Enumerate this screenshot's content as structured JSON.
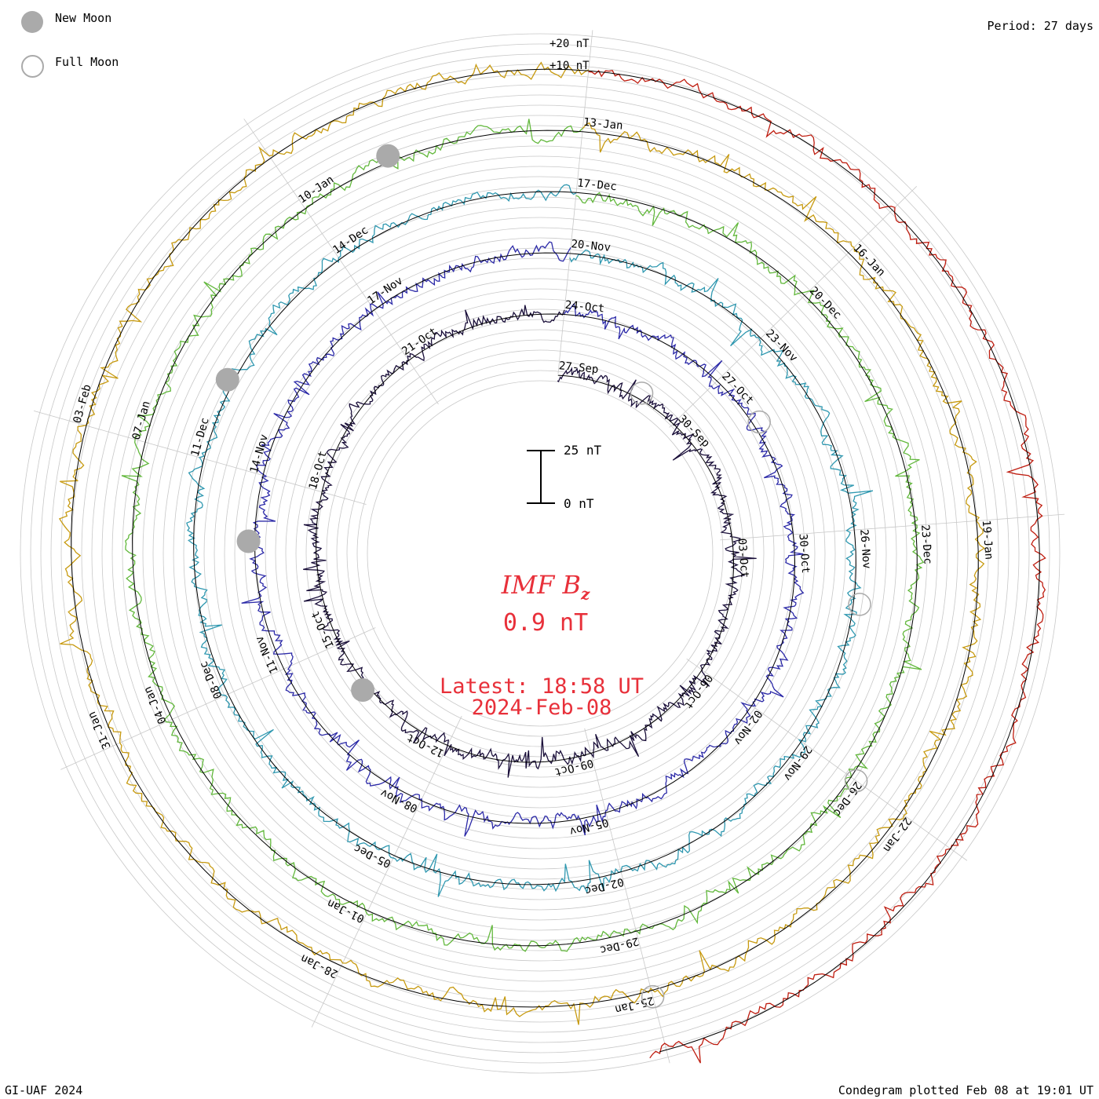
{
  "header": {
    "period_label": "Period: 27 days",
    "legend_new_moon": "New Moon",
    "legend_full_moon": "Full Moon"
  },
  "footer": {
    "credit": "GI-UAF 2024",
    "plotted": "Condegram plotted Feb 08 at 19:01 UT"
  },
  "center": {
    "title_main": "IMF B",
    "title_sub": "z",
    "current_value": "0.9 nT",
    "latest_time": "Latest: 18:58 UT",
    "latest_date": "2024-Feb-08"
  },
  "colors": {
    "title": "#e8303a",
    "new_moon": "#aaaaaa",
    "grid": "#c8c8c8"
  },
  "chart_data": {
    "type": "line",
    "title": "IMF B_z",
    "period_days": 27,
    "scale_bar": {
      "top_label": "25 nT",
      "bottom_label": "0 nT",
      "nT": 25
    },
    "ring_labels": [
      "+20 nT",
      "+10 nT"
    ],
    "turns": [
      {
        "color": "#1a0f3a",
        "labels": [
          "27-Sep",
          "30-Sep",
          "03-Oct",
          "06-Oct",
          "09-Oct",
          "12-Oct",
          "15-Oct",
          "18-Oct",
          "21-Oct"
        ]
      },
      {
        "color": "#2c2aa8",
        "labels": [
          "24-Oct",
          "27-Oct",
          "30-Oct",
          "02-Nov",
          "05-Nov",
          "08-Nov",
          "11-Nov",
          "14-Nov",
          "17-Nov"
        ]
      },
      {
        "color": "#2f98b0",
        "labels": [
          "20-Nov",
          "23-Nov",
          "26-Nov",
          "29-Nov",
          "02-Dec",
          "05-Dec",
          "08-Dec",
          "11-Dec",
          "14-Dec"
        ]
      },
      {
        "color": "#62b83c",
        "labels": [
          "17-Dec",
          "20-Dec",
          "23-Dec",
          "26-Dec",
          "29-Dec",
          "01-Jan",
          "04-Jan",
          "07-Jan",
          "10-Jan"
        ]
      },
      {
        "color": "#c79a10",
        "labels": [
          "13-Jan",
          "16-Jan",
          "19-Jan",
          "22-Jan",
          "25-Jan",
          "28-Jan",
          "31-Jan",
          "03-Feb"
        ]
      },
      {
        "color": "#bf1d10",
        "labels": []
      }
    ],
    "new_moons": [
      "14-Oct",
      "13-Nov",
      "12-Dec",
      "11-Jan"
    ],
    "full_moons": [
      "29-Sep",
      "28-Oct",
      "27-Nov",
      "26-Dec",
      "25-Jan"
    ]
  }
}
